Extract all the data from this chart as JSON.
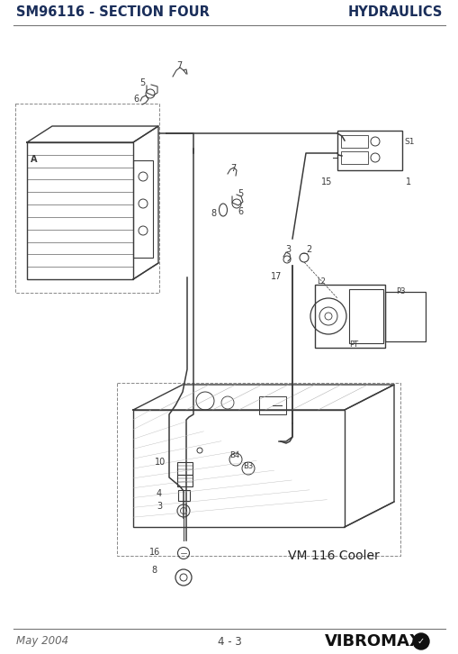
{
  "header_left": "SM96116 - SECTION FOUR",
  "header_right": "HYDRAULICS",
  "footer_left": "May 2004",
  "footer_center": "4 - 3",
  "footer_logo": "VIBROMAX",
  "diagram_label": "VM 116 Cooler",
  "bg_color": "#ffffff",
  "header_color": "#1a2e5a",
  "line_color": "#777777",
  "diagram_color": "#444444",
  "header_fontsize": 10.5,
  "footer_fontsize": 8.5,
  "logo_fontsize": 13,
  "diagram_label_fontsize": 10
}
